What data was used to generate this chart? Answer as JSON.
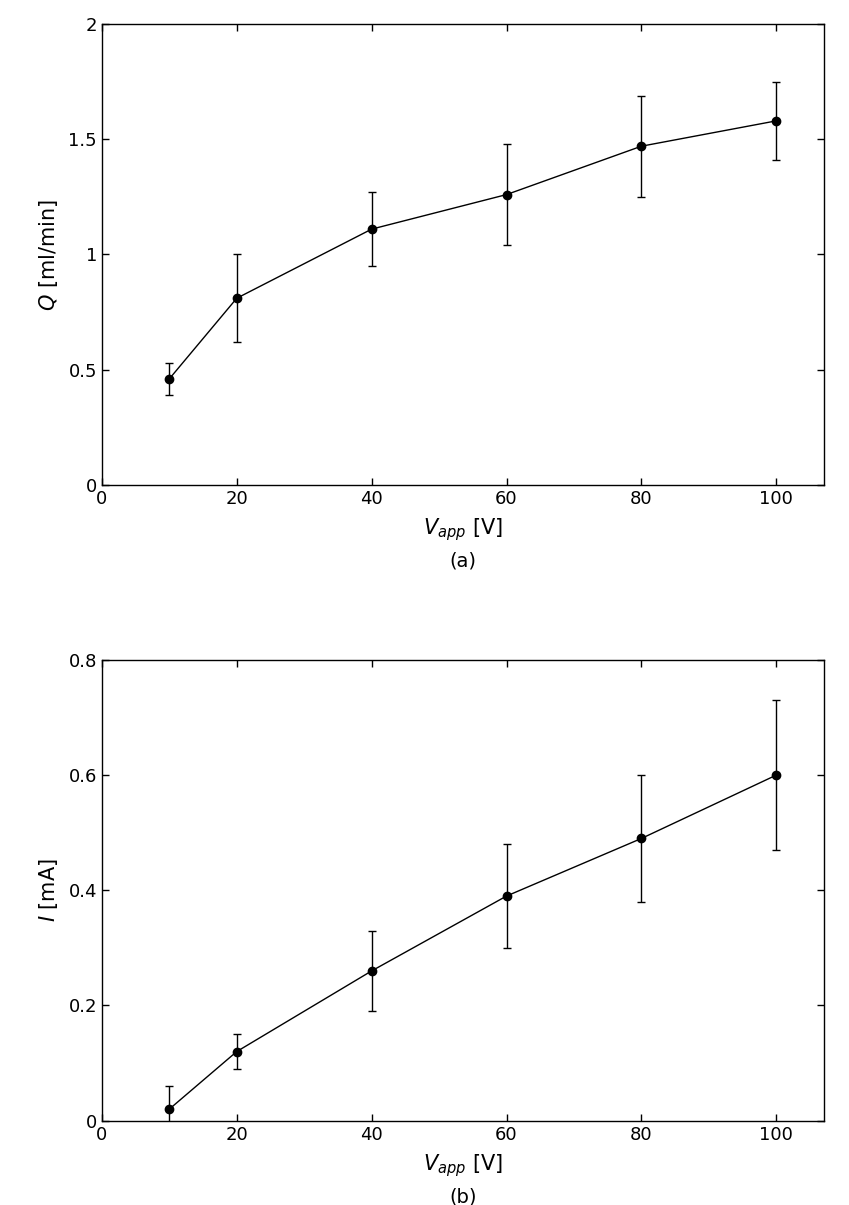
{
  "plot_a": {
    "x": [
      10,
      20,
      40,
      60,
      80,
      100
    ],
    "y": [
      0.46,
      0.81,
      1.11,
      1.26,
      1.47,
      1.58
    ],
    "yerr": [
      0.07,
      0.19,
      0.16,
      0.22,
      0.22,
      0.17
    ],
    "ylabel": "$\\mathit{Q}$ [ml/min]",
    "xlabel": "$\\mathit{V}_{app}$ [V]",
    "ylim": [
      0.0,
      2.0
    ],
    "yticks": [
      0.0,
      0.5,
      1.0,
      1.5,
      2.0
    ],
    "xlim": [
      0,
      107
    ],
    "xticks": [
      0,
      20,
      40,
      60,
      80,
      100
    ],
    "label": "(a)"
  },
  "plot_b": {
    "x": [
      10,
      20,
      40,
      60,
      80,
      100
    ],
    "y": [
      0.02,
      0.12,
      0.26,
      0.39,
      0.49,
      0.6
    ],
    "yerr": [
      0.04,
      0.03,
      0.07,
      0.09,
      0.11,
      0.13
    ],
    "ylabel": "$\\mathit{I}$ [mA]",
    "xlabel": "$\\mathit{V}_{app}$ [V]",
    "ylim": [
      0.0,
      0.8
    ],
    "yticks": [
      0.0,
      0.2,
      0.4,
      0.6,
      0.8
    ],
    "xlim": [
      0,
      107
    ],
    "xticks": [
      0,
      20,
      40,
      60,
      80,
      100
    ],
    "label": "(b)"
  },
  "line_color": "#000000",
  "marker_color": "#000000",
  "marker_size": 6,
  "linewidth": 1.0,
  "capsize": 3,
  "elinewidth": 1.0,
  "background_color": "#ffffff",
  "label_fontsize": 15,
  "tick_fontsize": 13,
  "sublabel_fontsize": 14
}
